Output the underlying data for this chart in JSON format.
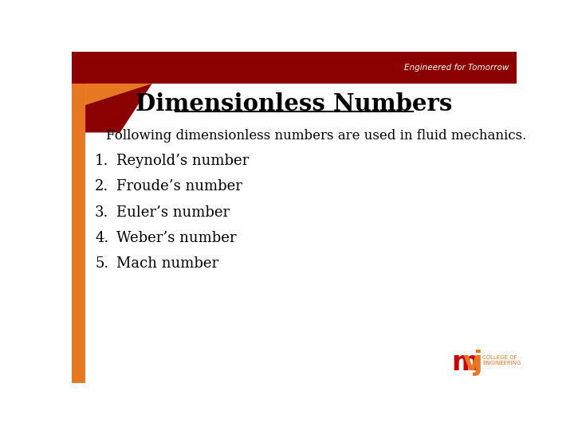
{
  "title": "Dimensionless Numbers",
  "subtitle": "Following dimensionless numbers are used in fluid mechanics.",
  "items": [
    "Reynold’s number",
    "Froude’s number",
    "Euler’s number",
    "Weber’s number",
    "Mach number"
  ],
  "bg_color": "#ffffff",
  "title_color": "#000000",
  "text_color": "#000000",
  "header_dark_red": "#8b0000",
  "orange_color": "#e87722",
  "tagline": "Engineered for Tomorrow",
  "tagline_color": "#ffffff",
  "mvj_m_color": "#cc0000",
  "mvj_vj_color": "#e87722"
}
